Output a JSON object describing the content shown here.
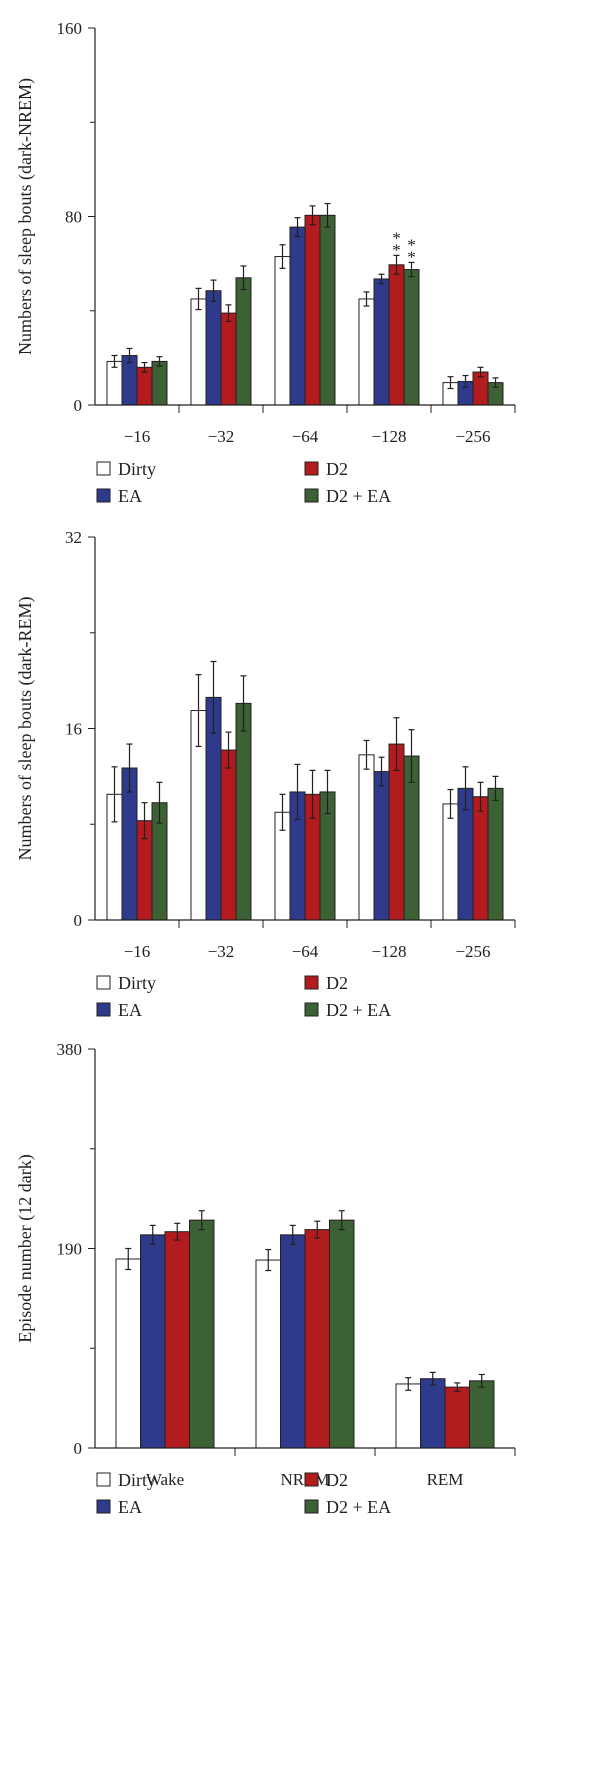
{
  "colors": {
    "Dirty": "#ffffff",
    "EA": "#2e3a8c",
    "D2": "#b21c1f",
    "D2 + EA": "#3b6135",
    "axis": "#231f20"
  },
  "legend": [
    "Dirty",
    "D2",
    "EA",
    "D2 + EA"
  ],
  "chart_data": [
    {
      "type": "bar",
      "ylabel": "Numbers of sleep bouts (dark-NREM)",
      "ylim": [
        0,
        160
      ],
      "yticks": [
        0,
        80,
        160
      ],
      "categories": [
        "−16",
        "−32",
        "−64",
        "−128",
        "−256"
      ],
      "series": [
        {
          "name": "Dirty",
          "values": [
            18.5,
            45,
            63,
            45,
            9.5
          ],
          "errors": [
            2.5,
            4.5,
            5,
            3,
            2.5
          ]
        },
        {
          "name": "EA",
          "values": [
            21,
            48.5,
            75.5,
            53.5,
            10
          ],
          "errors": [
            3,
            4.5,
            4,
            2,
            2.5
          ]
        },
        {
          "name": "D2",
          "values": [
            16,
            39,
            80.5,
            59.5,
            14
          ],
          "errors": [
            2,
            3.5,
            4,
            4,
            2
          ]
        },
        {
          "name": "D2 + EA",
          "values": [
            18.5,
            54,
            80.5,
            57.5,
            9.5
          ],
          "errors": [
            2,
            5,
            5,
            3,
            2
          ]
        }
      ],
      "annotations": [
        {
          "category": "−128",
          "series": "D2",
          "text": "*"
        },
        {
          "category": "−128",
          "series": "D2",
          "text": "*"
        },
        {
          "category": "−128",
          "series": "D2 + EA",
          "text": "*"
        },
        {
          "category": "−128",
          "series": "D2 + EA",
          "text": "*"
        }
      ],
      "legend_position": "bottom"
    },
    {
      "type": "bar",
      "ylabel": "Numbers of sleep bouts (dark-REM)",
      "ylim": [
        0,
        32
      ],
      "yticks": [
        0,
        16,
        32
      ],
      "categories": [
        "−16",
        "−32",
        "−64",
        "−128",
        "−256"
      ],
      "series": [
        {
          "name": "Dirty",
          "values": [
            10.5,
            17.5,
            9,
            13.8,
            9.7
          ],
          "errors": [
            2.3,
            3,
            1.5,
            1.2,
            1.2
          ]
        },
        {
          "name": "EA",
          "values": [
            12.7,
            18.6,
            10.7,
            12.4,
            11
          ],
          "errors": [
            2,
            3,
            2.3,
            1.2,
            1.8
          ]
        },
        {
          "name": "D2",
          "values": [
            8.3,
            14.2,
            10.5,
            14.7,
            10.3
          ],
          "errors": [
            1.5,
            1.5,
            2,
            2.2,
            1.2
          ]
        },
        {
          "name": "D2 + EA",
          "values": [
            9.8,
            18.1,
            10.7,
            13.7,
            11
          ],
          "errors": [
            1.7,
            2.3,
            1.8,
            2.2,
            1
          ]
        }
      ],
      "legend_position": "bottom"
    },
    {
      "type": "bar",
      "ylabel": "Episode number (12 dark)",
      "ylim": [
        0,
        380
      ],
      "yticks": [
        0,
        190,
        380
      ],
      "categories": [
        "Wake",
        "NREM",
        "REM"
      ],
      "series": [
        {
          "name": "Dirty",
          "values": [
            180,
            179,
            61
          ],
          "errors": [
            10,
            10,
            6
          ]
        },
        {
          "name": "EA",
          "values": [
            203,
            203,
            66
          ],
          "errors": [
            9,
            9,
            6
          ]
        },
        {
          "name": "D2",
          "values": [
            206,
            208,
            58
          ],
          "errors": [
            8,
            8,
            4
          ]
        },
        {
          "name": "D2 + EA",
          "values": [
            217,
            217,
            64
          ],
          "errors": [
            9,
            9,
            6
          ]
        }
      ],
      "legend_position": "bottom"
    }
  ]
}
